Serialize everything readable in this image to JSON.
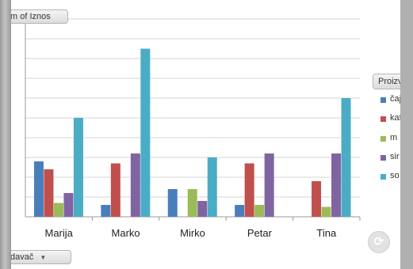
{
  "field_buttons": {
    "value_field": "m of Iznos",
    "legend_field": "Proizvod",
    "row_field": "davač"
  },
  "colors": {
    "čaj": "#4a7ebb",
    "kafa": "#c0504d",
    "mlijeko": "#9bbb59",
    "sir": "#8064a2",
    "so": "#4bacc6"
  },
  "chart_data": {
    "type": "bar",
    "title": "",
    "xlabel": "",
    "ylabel": "",
    "categories": [
      "Marija",
      "Marko",
      "Mirko",
      "Petar",
      "Tina"
    ],
    "ylim": [
      0,
      10
    ],
    "grid": true,
    "legend_position": "right",
    "series": [
      {
        "name": "čaj",
        "values": [
          2.8,
          0.6,
          1.4,
          0.6,
          0
        ]
      },
      {
        "name": "kafa",
        "values": [
          2.4,
          2.7,
          0,
          2.7,
          1.8
        ]
      },
      {
        "name": "m lije",
        "values": [
          0.7,
          0,
          1.4,
          0.6,
          0.5
        ]
      },
      {
        "name": "sir",
        "values": [
          1.2,
          3.2,
          0.8,
          3.2,
          3.2
        ]
      },
      {
        "name": "so",
        "values": [
          5.0,
          8.5,
          3.0,
          0,
          6.0
        ]
      }
    ]
  }
}
